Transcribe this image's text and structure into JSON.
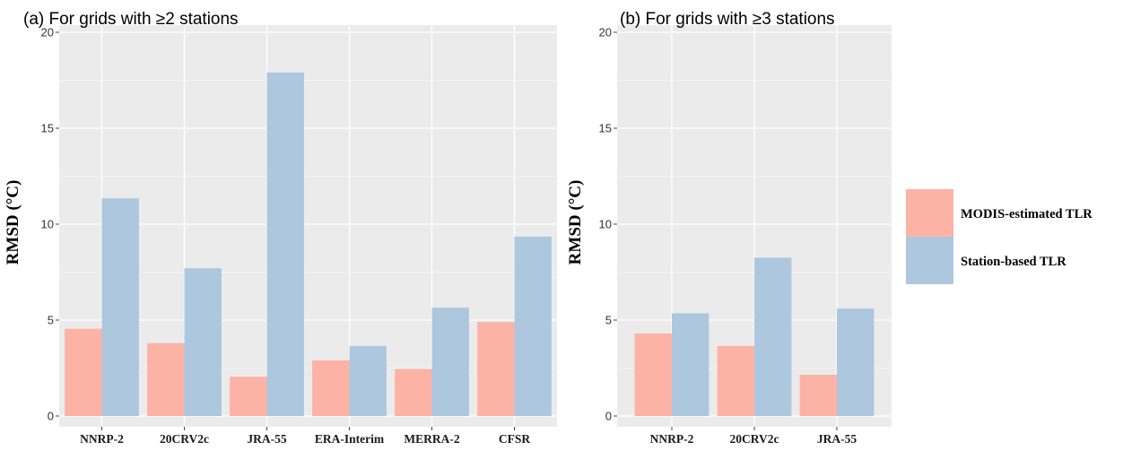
{
  "chart_data": [
    {
      "type": "bar",
      "title": "(a) For grids with ≥2 stations",
      "ylabel": "RMSD (°C)",
      "xlabel": "",
      "categories": [
        "NNRP-2",
        "20CRV2c",
        "JRA-55",
        "ERA-Interim",
        "MERRA-2",
        "CFSR"
      ],
      "series": [
        {
          "name": "MODIS-estimated TLR",
          "values": [
            4.55,
            3.8,
            2.05,
            2.9,
            2.45,
            4.9
          ]
        },
        {
          "name": "Station-based TLR",
          "values": [
            11.35,
            7.7,
            17.9,
            3.65,
            5.65,
            9.35
          ]
        }
      ],
      "ylim": [
        0,
        20
      ],
      "yticks": [
        "0",
        "5",
        "10",
        "15",
        "20"
      ],
      "grid": true
    },
    {
      "type": "bar",
      "title": "(b) For grids with ≥3 stations",
      "ylabel": "RMSD (°C)",
      "xlabel": "",
      "categories": [
        "NNRP-2",
        "20CRV2c",
        "JRA-55"
      ],
      "series": [
        {
          "name": "MODIS-estimated TLR",
          "values": [
            4.3,
            3.65,
            2.15
          ]
        },
        {
          "name": "Station-based TLR",
          "values": [
            5.35,
            8.25,
            5.6
          ]
        }
      ],
      "ylim": [
        0,
        20
      ],
      "yticks": [
        "0",
        "5",
        "10",
        "15",
        "20"
      ],
      "grid": true
    }
  ],
  "legend": {
    "placement": "right",
    "items": [
      {
        "label": "MODIS-estimated TLR",
        "color": "#fcb3a6"
      },
      {
        "label": "Station-based TLR",
        "color": "#adc7de"
      }
    ]
  },
  "colors": {
    "panel_bg": "#ebebeb",
    "grid": "#ffffff",
    "modis": "#fcb3a6",
    "station": "#adc7de"
  }
}
